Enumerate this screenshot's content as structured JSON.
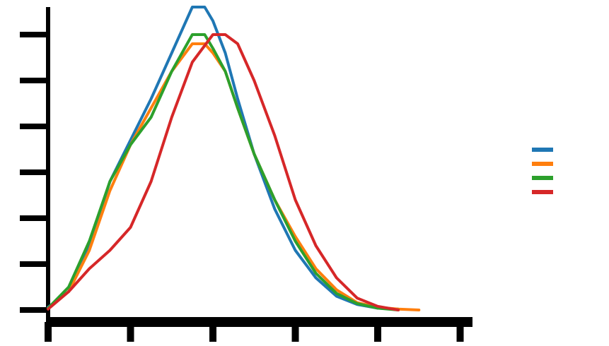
{
  "chart_data": {
    "type": "line",
    "title": "",
    "xlabel": "",
    "ylabel": "",
    "xlim": [
      0,
      10.3
    ],
    "ylim": [
      -0.01,
      0.33
    ],
    "x_ticks": [
      0,
      2,
      4,
      6,
      8,
      10
    ],
    "y_ticks": [
      0.0,
      0.05,
      0.1,
      0.15,
      0.2,
      0.25,
      0.3
    ],
    "grid": false,
    "legend": {
      "position": "right"
    },
    "series": [
      {
        "color": "#1f77b4",
        "x": [
          0.0,
          0.5,
          1.0,
          1.5,
          2.0,
          2.5,
          3.0,
          3.5,
          3.8,
          4.0,
          4.3,
          4.6,
          5.0,
          5.5,
          6.0,
          6.5,
          7.0,
          7.5,
          8.0,
          8.5
        ],
        "y": [
          0.003,
          0.02,
          0.07,
          0.14,
          0.185,
          0.23,
          0.28,
          0.33,
          0.33,
          0.315,
          0.28,
          0.23,
          0.17,
          0.11,
          0.065,
          0.035,
          0.015,
          0.006,
          0.002,
          0.001
        ]
      },
      {
        "color": "#ff7f0e",
        "x": [
          0.0,
          0.5,
          1.0,
          1.5,
          2.0,
          2.5,
          3.0,
          3.5,
          3.8,
          4.0,
          4.3,
          4.6,
          5.0,
          5.5,
          6.0,
          6.5,
          7.0,
          7.5,
          8.0,
          8.5,
          9.0
        ],
        "y": [
          0.002,
          0.02,
          0.065,
          0.13,
          0.18,
          0.22,
          0.26,
          0.29,
          0.29,
          0.28,
          0.26,
          0.22,
          0.17,
          0.12,
          0.08,
          0.045,
          0.022,
          0.008,
          0.003,
          0.001,
          0.0
        ]
      },
      {
        "color": "#2ca02c",
        "x": [
          0.0,
          0.5,
          1.0,
          1.5,
          2.0,
          2.5,
          3.0,
          3.5,
          3.8,
          4.0,
          4.3,
          4.6,
          5.0,
          5.5,
          6.0,
          6.5,
          7.0,
          7.5,
          8.0,
          8.5
        ],
        "y": [
          0.002,
          0.025,
          0.075,
          0.14,
          0.18,
          0.21,
          0.26,
          0.3,
          0.3,
          0.285,
          0.26,
          0.22,
          0.17,
          0.12,
          0.075,
          0.04,
          0.018,
          0.007,
          0.002,
          0.0
        ]
      },
      {
        "color": "#d62728",
        "x": [
          0.0,
          0.5,
          1.0,
          1.5,
          2.0,
          2.5,
          3.0,
          3.5,
          4.0,
          4.3,
          4.6,
          5.0,
          5.5,
          6.0,
          6.5,
          7.0,
          7.5,
          8.0,
          8.5
        ],
        "y": [
          0.001,
          0.02,
          0.045,
          0.065,
          0.09,
          0.14,
          0.21,
          0.27,
          0.3,
          0.3,
          0.29,
          0.25,
          0.19,
          0.12,
          0.07,
          0.035,
          0.013,
          0.004,
          0.0
        ]
      }
    ]
  }
}
